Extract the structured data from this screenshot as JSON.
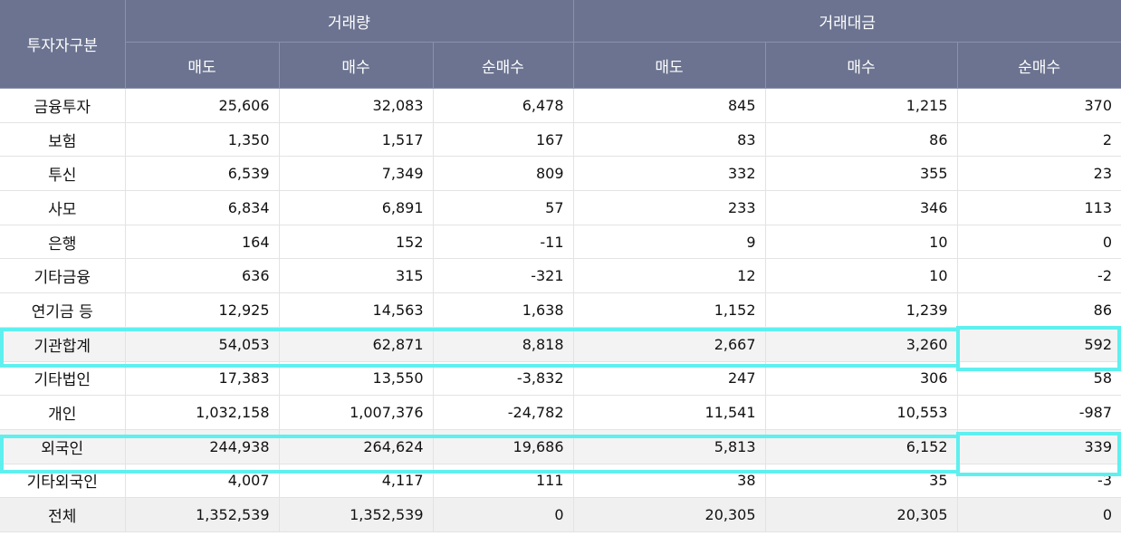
{
  "header": {
    "category_label": "투자자구분",
    "group_volume": "거래량",
    "group_amount": "거래대금",
    "sub": [
      "매도",
      "매수",
      "순매수",
      "매도",
      "매수",
      "순매수"
    ]
  },
  "rows": [
    {
      "label": "금융투자",
      "values": [
        "25,606",
        "32,083",
        "6,478",
        "845",
        "1,215",
        "370"
      ]
    },
    {
      "label": "보험",
      "values": [
        "1,350",
        "1,517",
        "167",
        "83",
        "86",
        "2"
      ]
    },
    {
      "label": "투신",
      "values": [
        "6,539",
        "7,349",
        "809",
        "332",
        "355",
        "23"
      ]
    },
    {
      "label": "사모",
      "values": [
        "6,834",
        "6,891",
        "57",
        "233",
        "346",
        "113"
      ]
    },
    {
      "label": "은행",
      "values": [
        "164",
        "152",
        "-11",
        "9",
        "10",
        "0"
      ]
    },
    {
      "label": "기타금융",
      "values": [
        "636",
        "315",
        "-321",
        "12",
        "10",
        "-2"
      ]
    },
    {
      "label": "연기금 등",
      "values": [
        "12,925",
        "14,563",
        "1,638",
        "1,152",
        "1,239",
        "86"
      ]
    },
    {
      "label": "기관합계",
      "values": [
        "54,053",
        "62,871",
        "8,818",
        "2,667",
        "3,260",
        "592"
      ]
    },
    {
      "label": "기타법인",
      "values": [
        "17,383",
        "13,550",
        "-3,832",
        "247",
        "306",
        "58"
      ]
    },
    {
      "label": "개인",
      "values": [
        "1,032,158",
        "1,007,376",
        "-24,782",
        "11,541",
        "10,553",
        "-987"
      ]
    },
    {
      "label": "외국인",
      "values": [
        "244,938",
        "264,624",
        "19,686",
        "5,813",
        "6,152",
        "339"
      ]
    },
    {
      "label": "기타외국인",
      "values": [
        "4,007",
        "4,117",
        "111",
        "38",
        "35",
        "-3"
      ]
    },
    {
      "label": "전체",
      "values": [
        "1,352,539",
        "1,352,539",
        "0",
        "20,305",
        "20,305",
        "0"
      ]
    }
  ],
  "colors": {
    "header_bg": "#6b7390",
    "highlight_border": "#5ef0ef"
  }
}
